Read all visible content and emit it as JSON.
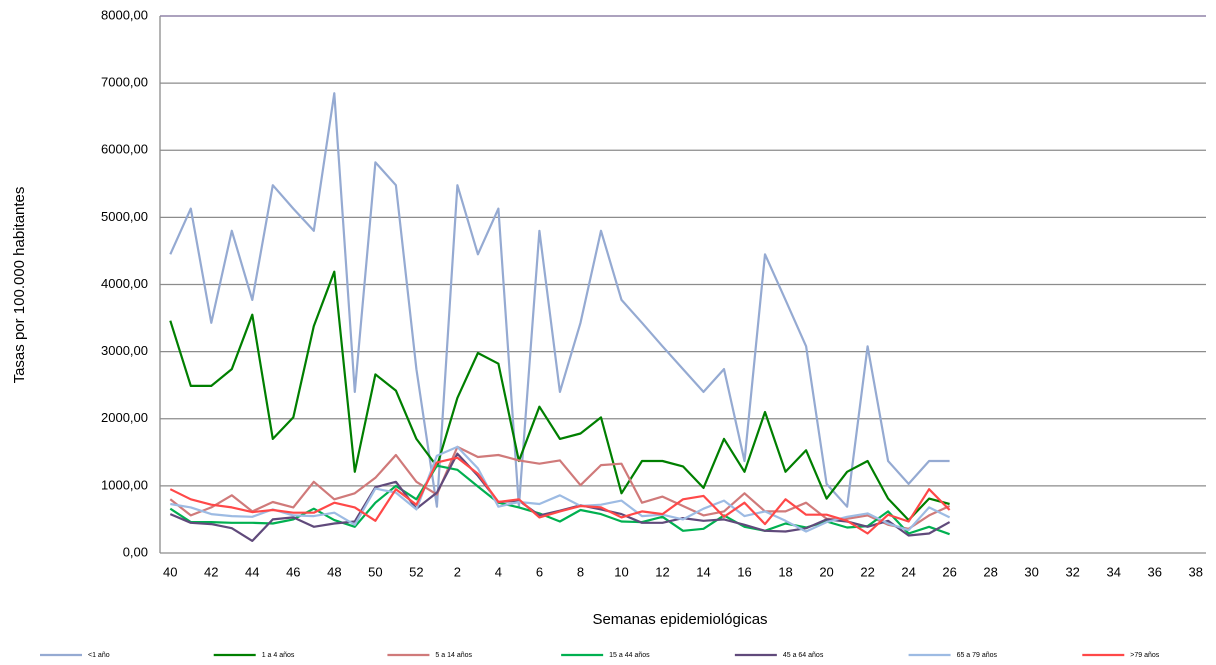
{
  "chart_data": {
    "type": "line",
    "y_label": "Tasas por 100.000 habitantes",
    "x_label": "Semanas epidemiológicas",
    "categories": [
      "40",
      null,
      "42",
      null,
      "44",
      null,
      "46",
      null,
      "48",
      null,
      "50",
      null,
      "52",
      null,
      "2",
      null,
      "4",
      null,
      "6",
      null,
      "8",
      null,
      "10",
      null,
      "12",
      null,
      "14",
      null,
      "16",
      null,
      "18",
      null,
      "20",
      null,
      "22",
      null,
      "24",
      null,
      "26",
      null,
      "28",
      null,
      "30",
      null,
      "32",
      null,
      "34",
      null,
      "36",
      null,
      "38"
    ],
    "ylim": [
      0,
      8000
    ],
    "yticks": [
      {
        "value": 0,
        "label": "0,00"
      },
      {
        "value": 1000,
        "label": "1000,00"
      },
      {
        "value": 2000,
        "label": "2000,00"
      },
      {
        "value": 3000,
        "label": "3000,00"
      },
      {
        "value": 4000,
        "label": "4000,00"
      },
      {
        "value": 5000,
        "label": "5000,00"
      },
      {
        "value": 6000,
        "label": "6000,00"
      },
      {
        "value": 7000,
        "label": "7000,00"
      },
      {
        "value": 8000,
        "label": "8000,00"
      }
    ],
    "grid": true,
    "legend": "bottom",
    "series": [
      {
        "name": "<1 año",
        "color": "#95aad2",
        "values": [
          4450,
          5130,
          3430,
          4800,
          3770,
          5480,
          5130,
          4800,
          6850,
          2400,
          5820,
          5480,
          2740,
          690,
          5480,
          4450,
          5130,
          690,
          4800,
          2400,
          3430,
          4800,
          3770,
          3430,
          3080,
          2740,
          2400,
          2740,
          1370,
          4450,
          3770,
          3080,
          1030,
          690,
          3080,
          1370,
          1030,
          1370,
          1370,
          null,
          null,
          null,
          null,
          null,
          null,
          null,
          null,
          null,
          null,
          null,
          null
        ]
      },
      {
        "name": "1 a 4 años",
        "color": "#007f00",
        "values": [
          3460,
          2490,
          2490,
          2740,
          3550,
          1700,
          2020,
          3380,
          4190,
          1210,
          2660,
          2420,
          1700,
          1290,
          2310,
          2980,
          2820,
          1370,
          2180,
          1700,
          1780,
          2020,
          890,
          1370,
          1370,
          1290,
          970,
          1700,
          1210,
          2100,
          1210,
          1530,
          810,
          1210,
          1370,
          810,
          490,
          810,
          730,
          null,
          null,
          null,
          null,
          null,
          null,
          null,
          null,
          null,
          null,
          null,
          null
        ]
      },
      {
        "name": "5 a 14 años",
        "color": "#d07a7a",
        "values": [
          800,
          560,
          680,
          860,
          620,
          760,
          680,
          1060,
          800,
          890,
          1120,
          1460,
          1060,
          870,
          1580,
          1430,
          1460,
          1380,
          1330,
          1380,
          1010,
          1310,
          1330,
          750,
          840,
          700,
          560,
          620,
          890,
          620,
          620,
          750,
          510,
          510,
          560,
          420,
          360,
          560,
          700,
          null,
          null,
          null,
          null,
          null,
          null,
          null,
          null,
          null,
          null,
          null,
          null
        ]
      },
      {
        "name": "15 a 44 años",
        "color": "#00b050",
        "values": [
          660,
          460,
          460,
          450,
          450,
          440,
          500,
          660,
          490,
          390,
          750,
          1000,
          800,
          1300,
          1240,
          990,
          750,
          680,
          590,
          470,
          640,
          580,
          470,
          460,
          540,
          330,
          360,
          560,
          390,
          330,
          440,
          380,
          470,
          380,
          400,
          620,
          290,
          390,
          280,
          null,
          null,
          null,
          null,
          null,
          null,
          null,
          null,
          null,
          null,
          null,
          null
        ]
      },
      {
        "name": "45 a 64 años",
        "color": "#604a7b",
        "values": [
          580,
          450,
          430,
          370,
          180,
          500,
          530,
          390,
          440,
          470,
          980,
          1060,
          660,
          900,
          1480,
          1150,
          760,
          780,
          560,
          630,
          710,
          650,
          580,
          450,
          450,
          520,
          480,
          500,
          420,
          330,
          320,
          370,
          500,
          470,
          390,
          480,
          260,
          290,
          460,
          null,
          null,
          null,
          null,
          null,
          null,
          null,
          null,
          null,
          null,
          null,
          null
        ]
      },
      {
        "name": "65 a 79 años",
        "color": "#9dbbe3",
        "values": [
          730,
          680,
          580,
          550,
          540,
          650,
          560,
          550,
          600,
          420,
          960,
          900,
          650,
          1450,
          1580,
          1260,
          690,
          760,
          730,
          860,
          700,
          720,
          780,
          550,
          570,
          500,
          660,
          780,
          550,
          620,
          480,
          320,
          460,
          540,
          590,
          440,
          340,
          680,
          530,
          null,
          null,
          null,
          null,
          null,
          null,
          null,
          null,
          null,
          null,
          null,
          null
        ]
      },
      {
        "name": ">79 años",
        "color": "#ff4848",
        "values": [
          950,
          800,
          720,
          680,
          610,
          640,
          600,
          600,
          750,
          680,
          480,
          950,
          720,
          1350,
          1420,
          1180,
          760,
          800,
          530,
          620,
          700,
          680,
          530,
          620,
          580,
          800,
          850,
          540,
          750,
          430,
          800,
          570,
          570,
          480,
          290,
          570,
          470,
          950,
          640,
          null,
          null,
          null,
          null,
          null,
          null,
          null,
          null,
          null,
          null,
          null,
          null
        ]
      }
    ]
  }
}
